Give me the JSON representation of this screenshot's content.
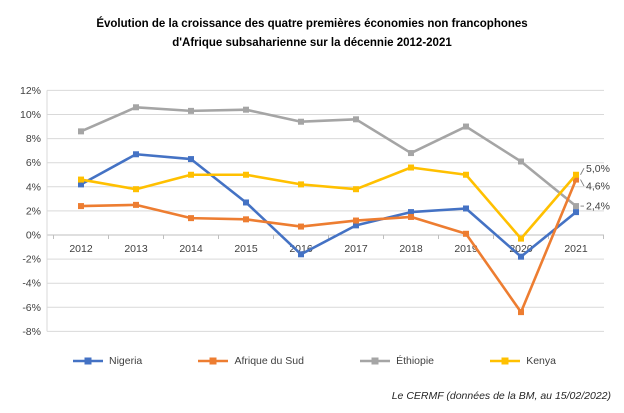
{
  "title": {
    "line1": "Évolution de la croissance des quatre premières économies non francophones",
    "line2": "d'Afrique subsaharienne sur la décennie 2012-2021"
  },
  "source_note": "Le CERMF (données de la BM, au 15/02/2022)",
  "chart_data": {
    "type": "line",
    "title": "Évolution de la croissance des quatre premières économies non francophones d'Afrique subsaharienne sur la décennie 2012-2021",
    "categories": [
      "2012",
      "2013",
      "2014",
      "2015",
      "2016",
      "2017",
      "2018",
      "2019",
      "2020",
      "2021"
    ],
    "series": [
      {
        "name": "Nigeria",
        "color": "#4472C4",
        "values": [
          4.2,
          6.7,
          6.3,
          2.7,
          -1.6,
          0.8,
          1.9,
          2.2,
          -1.8,
          1.9
        ]
      },
      {
        "name": "Afrique du Sud",
        "color": "#ED7D31",
        "values": [
          2.4,
          2.5,
          1.4,
          1.3,
          0.7,
          1.2,
          1.5,
          0.1,
          -6.4,
          4.6
        ]
      },
      {
        "name": "Éthiopie",
        "color": "#A5A5A5",
        "values": [
          8.6,
          10.6,
          10.3,
          10.4,
          9.4,
          9.6,
          6.8,
          9.0,
          6.1,
          2.4
        ]
      },
      {
        "name": "Kenya",
        "color": "#FFC000",
        "values": [
          4.6,
          3.8,
          5.0,
          5.0,
          4.2,
          3.8,
          5.6,
          5.0,
          -0.3,
          5.0
        ]
      }
    ],
    "ylim": [
      -8,
      12
    ],
    "ytick_step": 2,
    "y_tick_labels": [
      "12%",
      "10%",
      "8%",
      "6%",
      "4%",
      "2%",
      "0%",
      "-2%",
      "-4%",
      "-6%",
      "-8%"
    ],
    "grid": true,
    "marker": "square",
    "legend_position": "bottom",
    "end_labels": [
      {
        "series": "Kenya",
        "text": "5,0%"
      },
      {
        "series": "Afrique du Sud",
        "text": "4,6%"
      },
      {
        "series": "Éthiopie",
        "text": "2,4%"
      }
    ],
    "grid_color": "#D9D9D9",
    "axis_color": "#BFBFBF",
    "label_color": "#404040"
  }
}
